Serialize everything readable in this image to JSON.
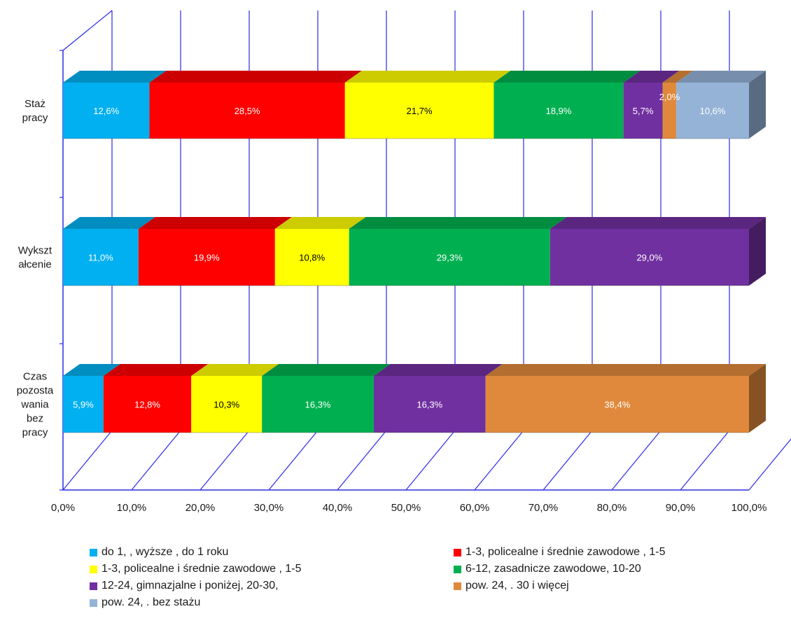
{
  "chart_data": {
    "type": "bar",
    "orientation": "horizontal",
    "stacked": true,
    "style_3d": true,
    "categories": [
      "Staż pracy",
      "Wykszt ałcenie",
      "Czas pozosta wania bez pracy"
    ],
    "category_label_lines": [
      [
        "Staż",
        "pracy"
      ],
      [
        "Wykszt",
        "ałcenie"
      ],
      [
        "Czas",
        "pozosta",
        "wania",
        "bez",
        "pracy"
      ]
    ],
    "x_ticks": [
      "0,0%",
      "10,0%",
      "20,0%",
      "30,0%",
      "40,0%",
      "50,0%",
      "60,0%",
      "70,0%",
      "80,0%",
      "90,0%",
      "100,0%"
    ],
    "xlim": [
      0,
      100
    ],
    "grid": true,
    "legend_position": "bottom",
    "series": [
      {
        "name": "do 1,  , wyższe , do 1 roku",
        "color": "#00B0F0",
        "label_color": "#ffffff",
        "values": [
          12.6,
          11.0,
          5.9
        ],
        "labels": [
          "12,6%",
          "11,0%",
          "5,9%"
        ]
      },
      {
        "name": "1-3,  policealne i średnie zawodowe , 1-5",
        "color": "#FF0000",
        "label_color": "#ffffff",
        "values": [
          28.5,
          19.9,
          12.8
        ],
        "labels": [
          "28,5%",
          "19,9%",
          "12,8%"
        ]
      },
      {
        "name": "1-3,  policealne i średnie zawodowe , 1-5",
        "color": "#FFFF00",
        "label_color": "#000000",
        "values": [
          21.7,
          10.8,
          10.3
        ],
        "labels": [
          "21,7%",
          "10,8%",
          "10,3%"
        ]
      },
      {
        "name": "6-12,  zasadnicze zawodowe,  10-20",
        "color": "#00B050",
        "label_color": "#ffffff",
        "values": [
          18.9,
          29.3,
          16.3
        ],
        "labels": [
          "18,9%",
          "29,3%",
          "16,3%"
        ]
      },
      {
        "name": "12-24, gimnazjalne i poniżej,  20-30,",
        "color": "#7030A0",
        "label_color": "#ffffff",
        "values": [
          5.7,
          29.0,
          16.3
        ],
        "labels": [
          "5,7%",
          "29,0%",
          "16,3%"
        ]
      },
      {
        "name": "pow. 24, . 30 i więcej",
        "color": "#E0893C",
        "label_color": "#ffffff",
        "values": [
          2.0,
          0,
          38.4
        ],
        "labels": [
          "2,0%",
          "",
          "38,4%"
        ]
      },
      {
        "name": "pow. 24, . bez stażu",
        "color": "#95B3D7",
        "label_color": "#ffffff",
        "values": [
          10.6,
          0,
          0
        ],
        "labels": [
          "10,6%",
          "",
          ""
        ]
      }
    ]
  }
}
